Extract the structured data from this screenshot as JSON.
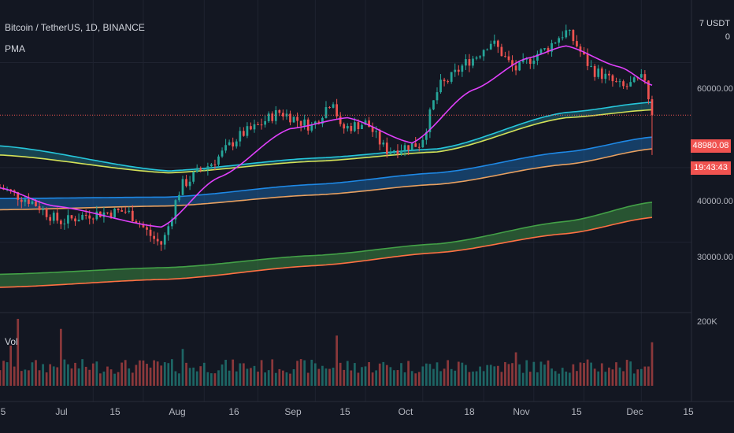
{
  "header": {
    "symbol_title": "Bitcoin / TetherUS, 1D, BINANCE",
    "indicator": "PMA",
    "volume_label": "Vol",
    "currency_button": "7 USDT 0"
  },
  "price_scale": {
    "ticks": [
      "60000.00",
      "40000.00",
      "30000.00"
    ],
    "volume_tick": "200K"
  },
  "last_price": {
    "price": "48980.08",
    "countdown": "19:43:43",
    "color": "#f05350"
  },
  "time_axis": {
    "labels": [
      "5",
      "Jul",
      "15",
      "Aug",
      "16",
      "Sep",
      "15",
      "Oct",
      "18",
      "Nov",
      "15",
      "Dec",
      "15"
    ]
  },
  "colors": {
    "background": "#131722",
    "up": "#26a69a",
    "down": "#ef5350",
    "ema_short": "#e040fb",
    "ma_cyan": "#26c6da",
    "ma_yellow": "#d4e157",
    "ma_blue": "#1e88e5",
    "ma_orange": "#e8a060",
    "ma_green": "#43a047",
    "ma_red": "#ff7043"
  },
  "chart_data": {
    "type": "candlestick",
    "title": "Bitcoin / TetherUS, 1D, BINANCE",
    "x_range": [
      "2021-06-05",
      "2021-12-15"
    ],
    "y_scale": "log",
    "ylim": [
      23000,
      73000
    ],
    "y_ticks": [
      30000,
      40000,
      60000
    ],
    "last_price": 48980.08,
    "grid": true,
    "close_anchors": [
      {
        "date": "2021-06-05",
        "close": 37000
      },
      {
        "date": "2021-06-12",
        "close": 35500
      },
      {
        "date": "2021-06-22",
        "close": 32500
      },
      {
        "date": "2021-07-01",
        "close": 33500
      },
      {
        "date": "2021-07-10",
        "close": 33800
      },
      {
        "date": "2021-07-20",
        "close": 29800
      },
      {
        "date": "2021-07-26",
        "close": 37500
      },
      {
        "date": "2021-08-01",
        "close": 40000
      },
      {
        "date": "2021-08-13",
        "close": 46000
      },
      {
        "date": "2021-08-22",
        "close": 49500
      },
      {
        "date": "2021-08-31",
        "close": 47000
      },
      {
        "date": "2021-09-06",
        "close": 52000
      },
      {
        "date": "2021-09-08",
        "close": 46500
      },
      {
        "date": "2021-09-15",
        "close": 47500
      },
      {
        "date": "2021-09-21",
        "close": 42800
      },
      {
        "date": "2021-09-30",
        "close": 43800
      },
      {
        "date": "2021-10-06",
        "close": 55000
      },
      {
        "date": "2021-10-15",
        "close": 61000
      },
      {
        "date": "2021-10-20",
        "close": 65000
      },
      {
        "date": "2021-10-27",
        "close": 58500
      },
      {
        "date": "2021-11-03",
        "close": 62500
      },
      {
        "date": "2021-11-10",
        "close": 67500
      },
      {
        "date": "2021-11-18",
        "close": 58000
      },
      {
        "date": "2021-11-26",
        "close": 54500
      },
      {
        "date": "2021-12-02",
        "close": 56500
      },
      {
        "date": "2021-12-04",
        "close": 48980
      }
    ],
    "ema_anchors": [
      {
        "date": "2021-06-05",
        "value": 37000
      },
      {
        "date": "2021-06-20",
        "value": 34500
      },
      {
        "date": "2021-07-20",
        "value": 31800
      },
      {
        "date": "2021-08-05",
        "value": 38500
      },
      {
        "date": "2021-08-25",
        "value": 46500
      },
      {
        "date": "2021-09-10",
        "value": 48500
      },
      {
        "date": "2021-09-28",
        "value": 44000
      },
      {
        "date": "2021-10-15",
        "value": 54000
      },
      {
        "date": "2021-10-30",
        "value": 61000
      },
      {
        "date": "2021-11-10",
        "value": 64000
      },
      {
        "date": "2021-11-25",
        "value": 59000
      },
      {
        "date": "2021-12-04",
        "value": 55000
      }
    ],
    "ma_bands": [
      {
        "name": "cyan",
        "anchors": [
          {
            "date": "2021-06-05",
            "value": 43500
          },
          {
            "date": "2021-07-22",
            "value": 39500
          },
          {
            "date": "2021-09-01",
            "value": 41500
          },
          {
            "date": "2021-10-05",
            "value": 43000
          },
          {
            "date": "2021-11-10",
            "value": 49500
          },
          {
            "date": "2021-12-04",
            "value": 51500
          }
        ]
      },
      {
        "name": "yellow",
        "anchors": [
          {
            "date": "2021-06-05",
            "value": 42000
          },
          {
            "date": "2021-07-22",
            "value": 39200
          },
          {
            "date": "2021-09-01",
            "value": 41000
          },
          {
            "date": "2021-10-05",
            "value": 42500
          },
          {
            "date": "2021-11-10",
            "value": 48500
          },
          {
            "date": "2021-12-04",
            "value": 50000
          }
        ]
      },
      {
        "name": "blue",
        "anchors": [
          {
            "date": "2021-06-05",
            "value": 35500
          },
          {
            "date": "2021-07-22",
            "value": 35700
          },
          {
            "date": "2021-09-01",
            "value": 37500
          },
          {
            "date": "2021-10-05",
            "value": 39200
          },
          {
            "date": "2021-11-10",
            "value": 42500
          },
          {
            "date": "2021-12-04",
            "value": 45000
          }
        ]
      },
      {
        "name": "orange",
        "anchors": [
          {
            "date": "2021-06-05",
            "value": 34000
          },
          {
            "date": "2021-07-22",
            "value": 34500
          },
          {
            "date": "2021-09-01",
            "value": 36000
          },
          {
            "date": "2021-10-05",
            "value": 37500
          },
          {
            "date": "2021-11-10",
            "value": 40500
          },
          {
            "date": "2021-12-04",
            "value": 43000
          }
        ]
      },
      {
        "name": "green",
        "anchors": [
          {
            "date": "2021-06-05",
            "value": 26500
          },
          {
            "date": "2021-07-22",
            "value": 27200
          },
          {
            "date": "2021-09-01",
            "value": 28500
          },
          {
            "date": "2021-10-05",
            "value": 29800
          },
          {
            "date": "2021-11-10",
            "value": 32500
          },
          {
            "date": "2021-12-04",
            "value": 35000
          }
        ]
      },
      {
        "name": "red",
        "anchors": [
          {
            "date": "2021-06-05",
            "value": 25200
          },
          {
            "date": "2021-07-22",
            "value": 26000
          },
          {
            "date": "2021-09-01",
            "value": 27400
          },
          {
            "date": "2021-10-05",
            "value": 28800
          },
          {
            "date": "2021-11-10",
            "value": 31000
          },
          {
            "date": "2021-12-04",
            "value": 33000
          }
        ]
      }
    ],
    "volume": {
      "ylim": [
        0,
        200000
      ],
      "tick": 200000,
      "note": "approximate daily volumes; high spikes near 2021-06-10, 2021-06-22, 2021-09-07, 2021-12-04"
    }
  }
}
